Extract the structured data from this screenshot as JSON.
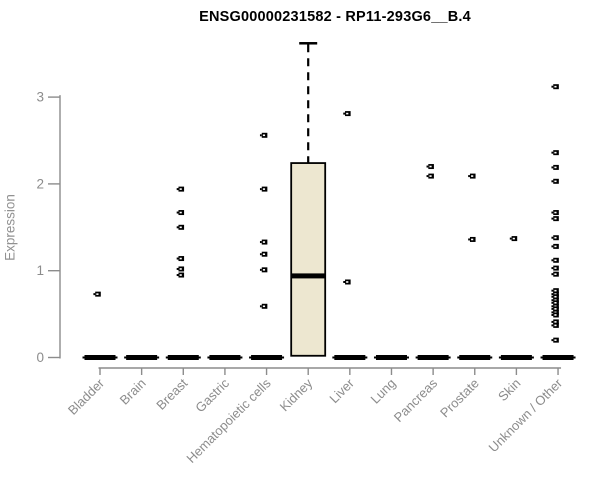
{
  "colors": {
    "box_fill": "#EDE7D0",
    "box_stroke": "#000000",
    "marks": "#000000",
    "axis_line": "#8c8c8c",
    "tick_text": "#8c8c8c",
    "title_text": "#000000"
  },
  "chart_data": {
    "type": "boxplot",
    "title": "ENSG00000231582 - RP11-293G6__B.4",
    "xlabel": "",
    "ylabel": "Expression",
    "ylim": [
      0,
      3.7
    ],
    "yticks": [
      0,
      1,
      2,
      3
    ],
    "ytick_labels": [
      "0",
      "1",
      "2",
      "3"
    ],
    "grid": false,
    "legend": "none",
    "categories": [
      "Bladder",
      "Brain",
      "Breast",
      "Gastric",
      "Hematopoietic cells",
      "Kidney",
      "Liver",
      "Lung",
      "Pancreas",
      "Prostate",
      "Skin",
      "Unknown / Other"
    ],
    "series": [
      {
        "label": "Bladder",
        "box": {
          "low": 0,
          "q1": 0,
          "median": 0,
          "q3": 0,
          "high": 0
        },
        "points": [
          0.73
        ]
      },
      {
        "label": "Brain",
        "box": {
          "low": 0,
          "q1": 0,
          "median": 0,
          "q3": 0,
          "high": 0
        },
        "points": []
      },
      {
        "label": "Breast",
        "box": {
          "low": 0,
          "q1": 0,
          "median": 0,
          "q3": 0,
          "high": 0
        },
        "points": [
          0.95,
          1.02,
          1.14,
          1.5,
          1.67,
          1.94
        ]
      },
      {
        "label": "Gastric",
        "box": {
          "low": 0,
          "q1": 0,
          "median": 0,
          "q3": 0,
          "high": 0
        },
        "points": []
      },
      {
        "label": "Hematopoietic cells",
        "box": {
          "low": 0,
          "q1": 0,
          "median": 0,
          "q3": 0,
          "high": 0
        },
        "points": [
          0.59,
          1.01,
          1.19,
          1.33,
          1.94,
          2.56
        ]
      },
      {
        "label": "Kidney",
        "box": {
          "low": 0.02,
          "q1": 0.02,
          "median": 0.94,
          "q3": 2.24,
          "high": 3.62
        },
        "points": []
      },
      {
        "label": "Liver",
        "box": {
          "low": 0,
          "q1": 0,
          "median": 0,
          "q3": 0,
          "high": 0
        },
        "points": [
          0.87,
          2.81
        ]
      },
      {
        "label": "Lung",
        "box": {
          "low": 0,
          "q1": 0,
          "median": 0,
          "q3": 0,
          "high": 0
        },
        "points": []
      },
      {
        "label": "Pancreas",
        "box": {
          "low": 0,
          "q1": 0,
          "median": 0,
          "q3": 0,
          "high": 0
        },
        "points": [
          2.09,
          2.2
        ]
      },
      {
        "label": "Prostate",
        "box": {
          "low": 0,
          "q1": 0,
          "median": 0,
          "q3": 0,
          "high": 0
        },
        "points": [
          1.36,
          2.09
        ]
      },
      {
        "label": "Skin",
        "box": {
          "low": 0,
          "q1": 0,
          "median": 0,
          "q3": 0,
          "high": 0
        },
        "points": [
          1.37
        ]
      },
      {
        "label": "Unknown / Other",
        "box": {
          "low": 0,
          "q1": 0,
          "median": 0,
          "q3": 0,
          "high": 0
        },
        "points": [
          3.12,
          2.36,
          2.19,
          2.03,
          1.67,
          1.6,
          1.38,
          1.28,
          1.12,
          1.03,
          0.96,
          0.77,
          0.73,
          0.7,
          0.66,
          0.63,
          0.59,
          0.56,
          0.52,
          0.49,
          0.41,
          0.37,
          0.2
        ]
      }
    ]
  }
}
